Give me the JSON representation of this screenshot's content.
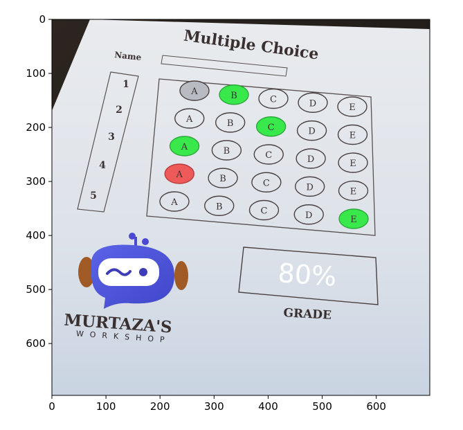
{
  "axes": {
    "x_ticks": [
      "0",
      "100",
      "200",
      "300",
      "400",
      "500",
      "600"
    ],
    "y_ticks": [
      "0",
      "100",
      "200",
      "300",
      "400",
      "500",
      "600"
    ]
  },
  "sheet": {
    "title": "Multiple Choice",
    "name_label": "Name",
    "question_numbers": [
      "1",
      "2",
      "3",
      "4",
      "5"
    ],
    "options": [
      "A",
      "B",
      "C",
      "D",
      "E"
    ],
    "marked_answers": [
      {
        "question": 1,
        "choice": "B",
        "status": "correct"
      },
      {
        "question": 2,
        "choice": "C",
        "status": "correct"
      },
      {
        "question": 3,
        "choice": "A",
        "status": "correct"
      },
      {
        "question": 4,
        "choice": "A",
        "status": "wrong"
      },
      {
        "question": 4,
        "choice": "B",
        "status": "expected"
      },
      {
        "question": 5,
        "choice": "E",
        "status": "correct"
      }
    ],
    "grade_value": "80%",
    "grade_label": "GRADE",
    "logo_brand": "MURTAZA'S",
    "logo_sub": "WORKSHOP"
  },
  "colors": {
    "correct": "#39e84a",
    "wrong": "#ee5a5a",
    "grade_text": "#ffffff"
  }
}
